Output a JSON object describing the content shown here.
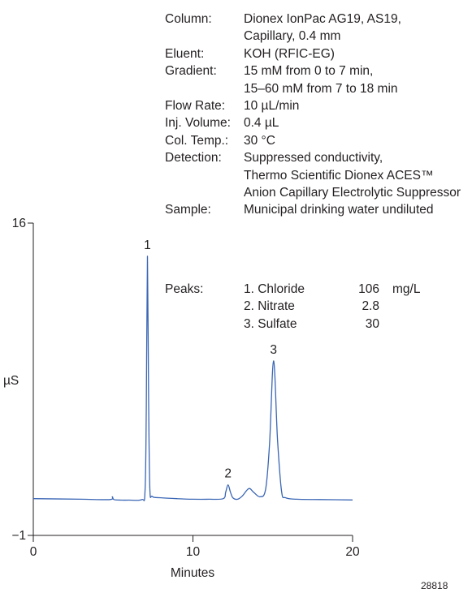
{
  "conditions": [
    {
      "label": "Column:",
      "lines": [
        "Dionex IonPac AG19, AS19,",
        "Capillary, 0.4 mm"
      ]
    },
    {
      "label": "Eluent:",
      "lines": [
        "KOH (RFIC-EG)"
      ]
    },
    {
      "label": "Gradient:",
      "lines": [
        "15 mM from 0 to 7 min,",
        "15–60 mM from 7 to 18 min"
      ]
    },
    {
      "label": "Flow Rate:",
      "lines": [
        "10 µL/min"
      ]
    },
    {
      "label": "Inj. Volume:",
      "lines": [
        "0.4 µL"
      ]
    },
    {
      "label": "Col. Temp.:",
      "lines": [
        "30 °C"
      ]
    },
    {
      "label": "Detection:",
      "lines": [
        "Suppressed conductivity,",
        "Thermo Scientific Dionex ACES™",
        "Anion Capillary Electrolytic Suppressor"
      ]
    },
    {
      "label": "Sample:",
      "lines": [
        "Municipal drinking water undiluted"
      ]
    }
  ],
  "peaks": {
    "label": "Peaks:",
    "items": [
      {
        "name": "1. Chloride",
        "value": "106",
        "unit": "mg/L"
      },
      {
        "name": "2. Nitrate",
        "value": "2.8",
        "unit": ""
      },
      {
        "name": "3. Sulfate",
        "value": "30",
        "unit": ""
      }
    ]
  },
  "figure_id": "28818",
  "chart_data": {
    "type": "line",
    "xlabel": "Minutes",
    "ylabel": "µS",
    "xlim": [
      0,
      20
    ],
    "ylim": [
      -1,
      16
    ],
    "x_ticks": [
      0,
      10,
      20
    ],
    "y_ticks": [
      -1,
      16
    ],
    "grid": false,
    "line_color": "#3a66b5",
    "baseline": 1.0,
    "peaks": [
      {
        "label": "1",
        "x": 7.15,
        "height": 14.2
      },
      {
        "label": "2",
        "x": 12.2,
        "height": 1.75
      },
      {
        "label": "3",
        "x": 15.05,
        "height": 8.5
      }
    ],
    "trace": [
      [
        0,
        1.0
      ],
      [
        3,
        0.97
      ],
      [
        4.8,
        0.95
      ],
      [
        4.95,
        1.1
      ],
      [
        5.05,
        0.95
      ],
      [
        5.5,
        0.92
      ],
      [
        6.0,
        0.92
      ],
      [
        6.8,
        0.95
      ],
      [
        7.0,
        1.4
      ],
      [
        7.08,
        6.0
      ],
      [
        7.15,
        14.2
      ],
      [
        7.22,
        6.5
      ],
      [
        7.3,
        1.6
      ],
      [
        7.45,
        1.12
      ],
      [
        8,
        1.05
      ],
      [
        9,
        1.0
      ],
      [
        10,
        0.97
      ],
      [
        11,
        0.97
      ],
      [
        11.9,
        1.0
      ],
      [
        12.05,
        1.35
      ],
      [
        12.2,
        1.75
      ],
      [
        12.35,
        1.35
      ],
      [
        12.5,
        1.05
      ],
      [
        12.8,
        0.97
      ],
      [
        13.1,
        1.15
      ],
      [
        13.5,
        1.55
      ],
      [
        13.8,
        1.35
      ],
      [
        14.2,
        1.1
      ],
      [
        14.55,
        1.5
      ],
      [
        14.8,
        4.0
      ],
      [
        15.05,
        8.5
      ],
      [
        15.3,
        4.2
      ],
      [
        15.55,
        1.4
      ],
      [
        15.8,
        1.05
      ],
      [
        16.5,
        0.97
      ],
      [
        18,
        0.95
      ],
      [
        20,
        0.93
      ]
    ]
  }
}
